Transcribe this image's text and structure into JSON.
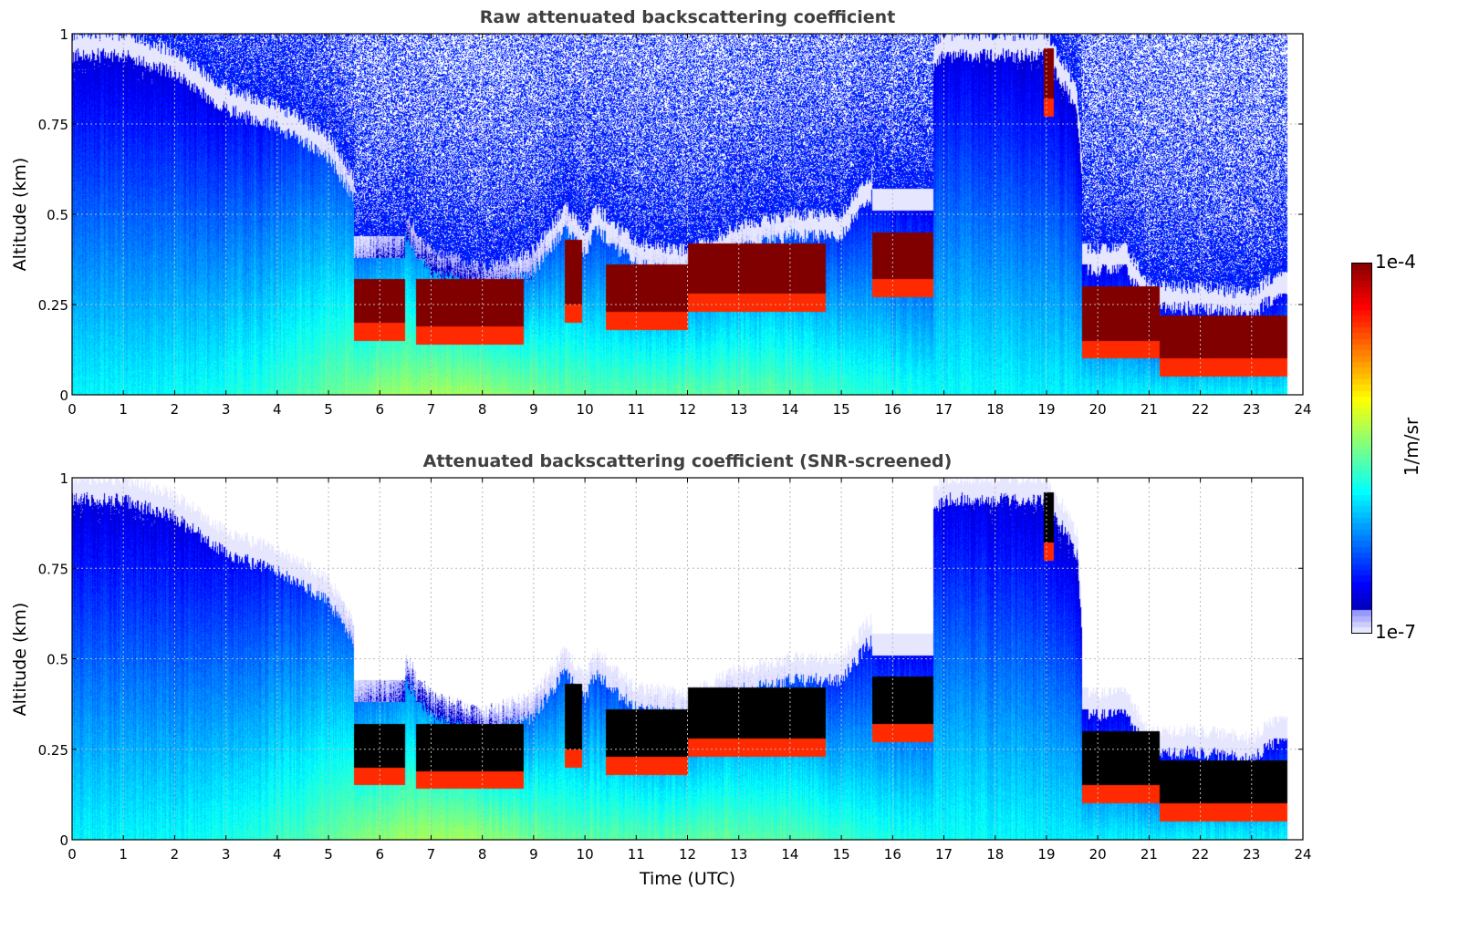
{
  "chart_data": [
    {
      "type": "heatmap",
      "title": "Raw attenuated backscattering coefficient",
      "xlabel": "",
      "ylabel": "Altitude (km)",
      "xlim": [
        0,
        24
      ],
      "ylim": [
        0,
        1
      ],
      "xticks": [
        "0",
        "1",
        "2",
        "3",
        "4",
        "5",
        "6",
        "7",
        "8",
        "9",
        "10",
        "11",
        "12",
        "13",
        "14",
        "15",
        "16",
        "17",
        "18",
        "19",
        "20",
        "21",
        "22",
        "23",
        "24"
      ],
      "yticks": [
        "0",
        "0.25",
        "0.5",
        "0.75",
        "1"
      ],
      "grid": true,
      "screened": false
    },
    {
      "type": "heatmap",
      "title": "Attenuated backscattering coefficient (SNR-screened)",
      "xlabel": "Time (UTC)",
      "ylabel": "Altitude (km)",
      "xlim": [
        0,
        24
      ],
      "ylim": [
        0,
        1
      ],
      "xticks": [
        "0",
        "1",
        "2",
        "3",
        "4",
        "5",
        "6",
        "7",
        "8",
        "9",
        "10",
        "11",
        "12",
        "13",
        "14",
        "15",
        "16",
        "17",
        "18",
        "19",
        "20",
        "21",
        "22",
        "23",
        "24"
      ],
      "yticks": [
        "0",
        "0.25",
        "0.5",
        "0.75",
        "1"
      ],
      "grid": true,
      "screened": true
    }
  ],
  "colorbar": {
    "label": "1/m/sr",
    "min_label": "1e-7",
    "max_label": "1e-4",
    "log_range": [
      -7,
      -4
    ],
    "colormap": "jet"
  },
  "data_end_hour": 23.7,
  "cloud_layers_km": [
    {
      "t0": 5.5,
      "t1": 6.5,
      "base": 0.2,
      "top": 0.32
    },
    {
      "t0": 6.7,
      "t1": 8.8,
      "base": 0.19,
      "top": 0.32
    },
    {
      "t0": 9.6,
      "t1": 9.95,
      "base": 0.25,
      "top": 0.43
    },
    {
      "t0": 10.4,
      "t1": 12.0,
      "base": 0.23,
      "top": 0.36
    },
    {
      "t0": 12.0,
      "t1": 14.7,
      "base": 0.28,
      "top": 0.42
    },
    {
      "t0": 15.6,
      "t1": 16.8,
      "base": 0.32,
      "top": 0.45
    },
    {
      "t0": 18.95,
      "t1": 19.15,
      "base": 0.82,
      "top": 0.96
    },
    {
      "t0": 19.7,
      "t1": 21.2,
      "base": 0.15,
      "top": 0.3
    },
    {
      "t0": 21.2,
      "t1": 23.7,
      "base": 0.1,
      "top": 0.22
    }
  ],
  "signal_top_km": {
    "hours": [
      0,
      1,
      2,
      3,
      4,
      5,
      5.5,
      6,
      6.5,
      7,
      8,
      9,
      9.6,
      10,
      10.2,
      11,
      12,
      13,
      14,
      15,
      15.5,
      16,
      16.5,
      17,
      18,
      19,
      19.6,
      19.8,
      20.5,
      21,
      22,
      23,
      23.6
    ],
    "values": [
      1,
      1,
      0.95,
      0.85,
      0.8,
      0.72,
      0.6,
      0.55,
      0.5,
      0.4,
      0.35,
      0.4,
      0.52,
      0.45,
      0.52,
      0.42,
      0.4,
      0.47,
      0.5,
      0.5,
      0.6,
      0.65,
      0.9,
      1,
      1,
      1,
      0.85,
      0.4,
      0.42,
      0.3,
      0.3,
      0.28,
      0.35
    ]
  }
}
